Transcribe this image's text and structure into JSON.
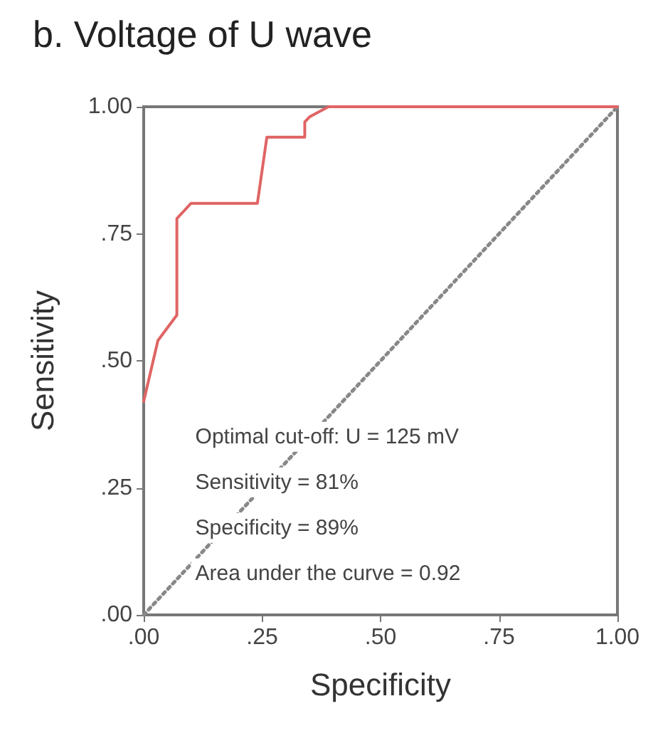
{
  "chart_data": {
    "type": "line",
    "title": "b. Voltage of U wave",
    "xlabel": "Specificity",
    "ylabel": "Sensitivity",
    "xlim": [
      0,
      1
    ],
    "ylim": [
      0,
      1
    ],
    "xticks": [
      {
        "value": 0,
        "label": ".00"
      },
      {
        "value": 0.25,
        "label": ".25"
      },
      {
        "value": 0.5,
        "label": ".50"
      },
      {
        "value": 0.75,
        "label": ".75"
      },
      {
        "value": 1,
        "label": "1.00"
      }
    ],
    "yticks": [
      {
        "value": 0,
        "label": ".00"
      },
      {
        "value": 0.25,
        "label": ".25"
      },
      {
        "value": 0.5,
        "label": ".50"
      },
      {
        "value": 0.75,
        "label": ".75"
      },
      {
        "value": 1,
        "label": "1.00"
      }
    ],
    "series": [
      {
        "color": "#e06464",
        "line_style": "solid",
        "x": [
          0,
          0.03,
          0.07,
          0.07,
          0.1,
          0.24,
          0.26,
          0.34,
          0.34,
          0.35,
          0.39,
          1
        ],
        "values": [
          0.42,
          0.54,
          0.59,
          0.78,
          0.81,
          0.81,
          0.94,
          0.94,
          0.97,
          0.98,
          1,
          1
        ]
      },
      {
        "color": "#888888",
        "line_style": "dotted",
        "x": [
          0,
          1
        ],
        "values": [
          0,
          1
        ]
      }
    ],
    "annotations": [
      "Optimal cut-off: U = 125 mV",
      "Sensitivity = 81%",
      "Specificity = 89%",
      "Area under the curve = 0.92"
    ],
    "grid": false,
    "marker": "none"
  }
}
